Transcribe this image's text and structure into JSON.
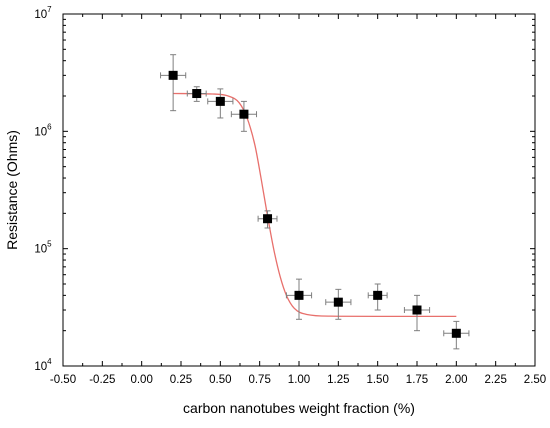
{
  "chart_data": {
    "type": "scatter",
    "xlabel": "carbon nanotubes weight fraction (%)",
    "ylabel": "Resistance (Ohms)",
    "xlim": [
      -0.5,
      2.5
    ],
    "ylim": [
      10000,
      10000000
    ],
    "y_scale": "log",
    "grid": false,
    "x_ticks": [
      -0.5,
      -0.25,
      0.0,
      0.25,
      0.5,
      0.75,
      1.0,
      1.25,
      1.5,
      1.75,
      2.0,
      2.25,
      2.5
    ],
    "x_tick_labels": [
      "-0.50",
      "-0.25",
      "0.00",
      "0.25",
      "0.50",
      "0.75",
      "1.00",
      "1.25",
      "1.50",
      "1.75",
      "2.00",
      "2.25",
      "2.50"
    ],
    "y_ticks": [
      {
        "value": 10000,
        "base": "10",
        "exp": "4"
      },
      {
        "value": 100000,
        "base": "10",
        "exp": "5"
      },
      {
        "value": 1000000,
        "base": "10",
        "exp": "6"
      },
      {
        "value": 10000000,
        "base": "10",
        "exp": "7"
      }
    ],
    "points": [
      {
        "x": 0.2,
        "y": 3000000,
        "x_err": 0.08,
        "y_low": 1500000,
        "y_high": 4500000
      },
      {
        "x": 0.35,
        "y": 2100000,
        "x_err": 0.06,
        "y_low": 1800000,
        "y_high": 2400000
      },
      {
        "x": 0.5,
        "y": 1800000,
        "x_err": 0.08,
        "y_low": 1300000,
        "y_high": 2300000
      },
      {
        "x": 0.65,
        "y": 1400000,
        "x_err": 0.08,
        "y_low": 1000000,
        "y_high": 1800000
      },
      {
        "x": 0.8,
        "y": 180000,
        "x_err": 0.06,
        "y_low": 150000,
        "y_high": 210000
      },
      {
        "x": 1.0,
        "y": 40000,
        "x_err": 0.08,
        "y_low": 25000,
        "y_high": 55000
      },
      {
        "x": 1.25,
        "y": 35000,
        "x_err": 0.08,
        "y_low": 25000,
        "y_high": 45000
      },
      {
        "x": 1.5,
        "y": 40000,
        "x_err": 0.06,
        "y_low": 30000,
        "y_high": 50000
      },
      {
        "x": 1.75,
        "y": 30000,
        "x_err": 0.08,
        "y_low": 20000,
        "y_high": 40000
      },
      {
        "x": 2.0,
        "y": 19000,
        "x_err": 0.08,
        "y_low": 14000,
        "y_high": 24000
      }
    ],
    "fit_curve": {
      "color": "#e8706c",
      "x_start": 0.2,
      "x_end": 2.0,
      "points": [
        [
          0.2,
          2100000
        ],
        [
          0.45,
          2080000
        ],
        [
          0.55,
          2000000
        ],
        [
          0.62,
          1750000
        ],
        [
          0.67,
          1300000
        ],
        [
          0.72,
          760000
        ],
        [
          0.76,
          390000
        ],
        [
          0.8,
          190000
        ],
        [
          0.84,
          98000
        ],
        [
          0.88,
          58000
        ],
        [
          0.92,
          40000
        ],
        [
          0.97,
          31000
        ],
        [
          1.05,
          27500
        ],
        [
          1.2,
          26600
        ],
        [
          1.5,
          26500
        ],
        [
          2.0,
          26500
        ]
      ]
    },
    "marker_color": "#000000",
    "error_bar_color": "#7f7f7f"
  }
}
